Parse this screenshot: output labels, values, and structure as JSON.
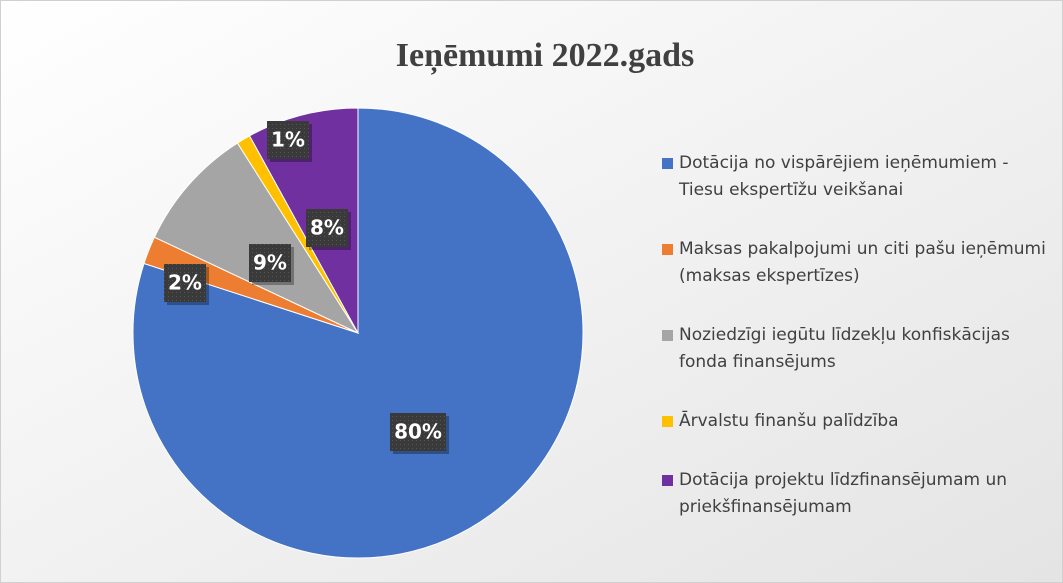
{
  "chart_data": {
    "type": "pie",
    "title": "Ieņēmumi 2022.gads",
    "categories": [
      "Dotācija no vispārējiem ieņēmumiem - Tiesu ekspertīžu veikšanai",
      "Maksas pakalpojumi un citi pašu ieņēmumi (maksas ekspertīzes)",
      "Noziedzīgi iegūtu līdzekļu konfiskācijas fonda finansējums",
      "Ārvalstu finanšu palīdzība",
      "Dotācija projektu līdzfinansējumam un priekšfinansējumam"
    ],
    "values": [
      80,
      2,
      9,
      1,
      8
    ],
    "value_labels": [
      "80%",
      "2%",
      "9%",
      "1%",
      "8%"
    ],
    "colors": [
      "#4472c4",
      "#ed7d31",
      "#a5a5a5",
      "#ffc000",
      "#7030a0"
    ],
    "legend": "right"
  }
}
